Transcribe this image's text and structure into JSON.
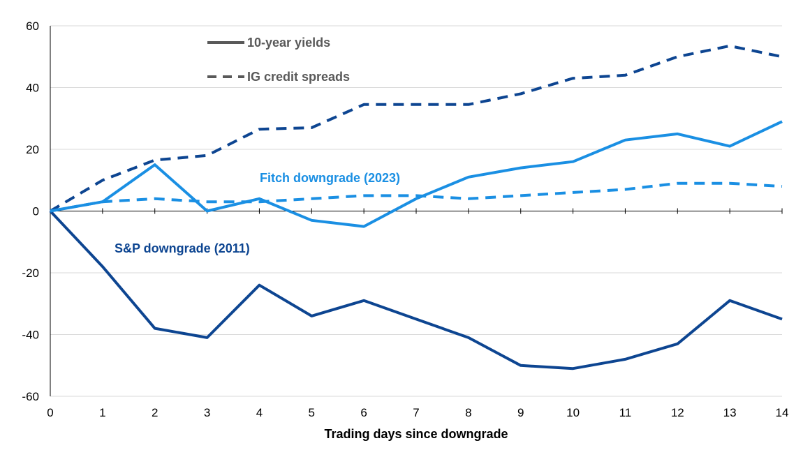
{
  "chart_data": {
    "type": "line",
    "xlabel": "Trading days since downgrade",
    "ylabel": "",
    "x": [
      0,
      1,
      2,
      3,
      4,
      5,
      6,
      7,
      8,
      9,
      10,
      11,
      12,
      13,
      14
    ],
    "xlim": [
      0,
      14
    ],
    "ylim": [
      -60,
      60
    ],
    "yticks": [
      -60,
      -40,
      -20,
      0,
      20,
      40,
      60
    ],
    "grid": "horizontal",
    "legend": {
      "placement": "top-left",
      "entries": [
        {
          "label": "10-year yields",
          "style": "solid"
        },
        {
          "label": "IG credit spreads",
          "style": "dashed"
        }
      ]
    },
    "annotations": [
      {
        "text": "Fitch downgrade (2023)",
        "color": "#1a8fe3"
      },
      {
        "text": "S&P downgrade (2011)",
        "color": "#0d4591"
      }
    ],
    "series": [
      {
        "group": "S&P downgrade (2011)",
        "measure": "10-year yields",
        "style": "solid",
        "color": "#0d4591",
        "values": [
          0,
          -18,
          -38,
          -41,
          -24,
          -34,
          -29,
          -35,
          -41,
          -50,
          -51,
          -48,
          -43,
          -29,
          -35
        ]
      },
      {
        "group": "S&P downgrade (2011)",
        "measure": "IG credit spreads",
        "style": "dashed",
        "color": "#0d4591",
        "values": [
          0,
          10,
          16.5,
          18,
          26.5,
          27,
          34.5,
          34.5,
          34.5,
          38,
          43,
          44,
          50,
          53.5,
          50
        ]
      },
      {
        "group": "Fitch downgrade (2023)",
        "measure": "10-year yields",
        "style": "solid",
        "color": "#1a8fe3",
        "values": [
          0,
          3,
          15,
          0,
          4,
          -3,
          -5,
          4,
          11,
          14,
          16,
          23,
          25,
          21,
          29
        ]
      },
      {
        "group": "Fitch downgrade (2023)",
        "measure": "IG credit spreads",
        "style": "dashed",
        "color": "#1a8fe3",
        "values": [
          0,
          3,
          4,
          3,
          3,
          4,
          5,
          5,
          4,
          5,
          6,
          7,
          9,
          9,
          8
        ]
      }
    ],
    "colors": {
      "legend_line": "#595959",
      "grid": "#d9d9d9",
      "axis": "#000000"
    }
  }
}
